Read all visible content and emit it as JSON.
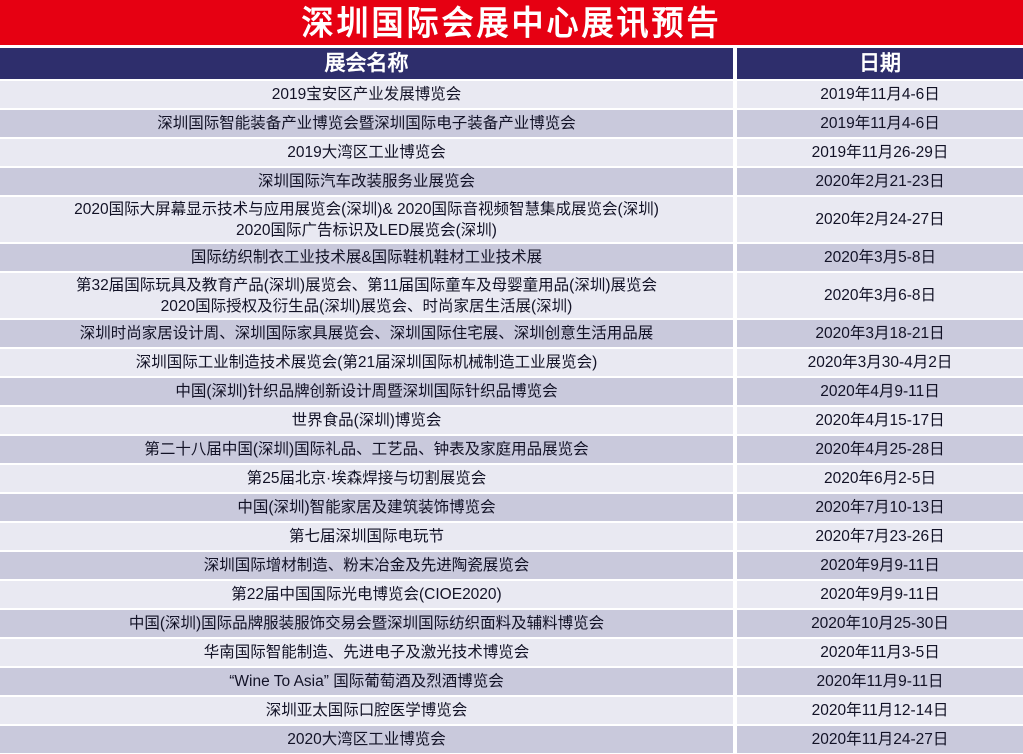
{
  "banner": {
    "title": "深圳国际会展中心展讯预告"
  },
  "colors": {
    "banner_bg": "#e60012",
    "banner_text": "#ffffff",
    "header_bg": "#2e2e6c",
    "header_text": "#ffffff",
    "row_light": "#e9e9f2",
    "row_dark": "#c9c9dc",
    "text": "#121226",
    "divider": "#ffffff"
  },
  "table": {
    "columns": [
      {
        "label": "展会名称"
      },
      {
        "label": "日期"
      }
    ],
    "rows": [
      {
        "name": "2019宝安区产业发展博览会",
        "date": "2019年11月4-6日"
      },
      {
        "name": "深圳国际智能装备产业博览会暨深圳国际电子装备产业博览会",
        "date": "2019年11月4-6日"
      },
      {
        "name": "2019大湾区工业博览会",
        "date": "2019年11月26-29日"
      },
      {
        "name": "深圳国际汽车改装服务业展览会",
        "date": "2020年2月21-23日"
      },
      {
        "name": "2020国际大屏幕显示技术与应用展览会(深圳)& 2020国际音视频智慧集成展览会(深圳)\n2020国际广告标识及LED展览会(深圳)",
        "date": "2020年2月24-27日"
      },
      {
        "name": "国际纺织制衣工业技术展&国际鞋机鞋材工业技术展",
        "date": "2020年3月5-8日"
      },
      {
        "name": "第32届国际玩具及教育产品(深圳)展览会、第11届国际童车及母婴童用品(深圳)展览会\n2020国际授权及衍生品(深圳)展览会、时尚家居生活展(深圳)",
        "date": "2020年3月6-8日"
      },
      {
        "name": "深圳时尚家居设计周、深圳国际家具展览会、深圳国际住宅展、深圳创意生活用品展",
        "date": "2020年3月18-21日"
      },
      {
        "name": "深圳国际工业制造技术展览会(第21届深圳国际机械制造工业展览会)",
        "date": "2020年3月30-4月2日"
      },
      {
        "name": "中国(深圳)针织品牌创新设计周暨深圳国际针织品博览会",
        "date": "2020年4月9-11日"
      },
      {
        "name": "世界食品(深圳)博览会",
        "date": "2020年4月15-17日"
      },
      {
        "name": "第二十八届中国(深圳)国际礼品、工艺品、钟表及家庭用品展览会",
        "date": "2020年4月25-28日"
      },
      {
        "name": "第25届北京·埃森焊接与切割展览会",
        "date": "2020年6月2-5日"
      },
      {
        "name": "中国(深圳)智能家居及建筑装饰博览会",
        "date": "2020年7月10-13日"
      },
      {
        "name": "第七届深圳国际电玩节",
        "date": "2020年7月23-26日"
      },
      {
        "name": "深圳国际增材制造、粉末冶金及先进陶瓷展览会",
        "date": "2020年9月9-11日"
      },
      {
        "name": "第22届中国国际光电博览会(CIOE2020)",
        "date": "2020年9月9-11日"
      },
      {
        "name": "中国(深圳)国际品牌服装服饰交易会暨深圳国际纺织面料及辅料博览会",
        "date": "2020年10月25-30日"
      },
      {
        "name": "华南国际智能制造、先进电子及激光技术博览会",
        "date": "2020年11月3-5日"
      },
      {
        "name": "“Wine To Asia” 国际葡萄酒及烈酒博览会",
        "date": "2020年11月9-11日"
      },
      {
        "name": "深圳亚太国际口腔医学博览会",
        "date": "2020年11月12-14日"
      },
      {
        "name": "2020大湾区工业博览会",
        "date": "2020年11月24-27日"
      }
    ]
  }
}
